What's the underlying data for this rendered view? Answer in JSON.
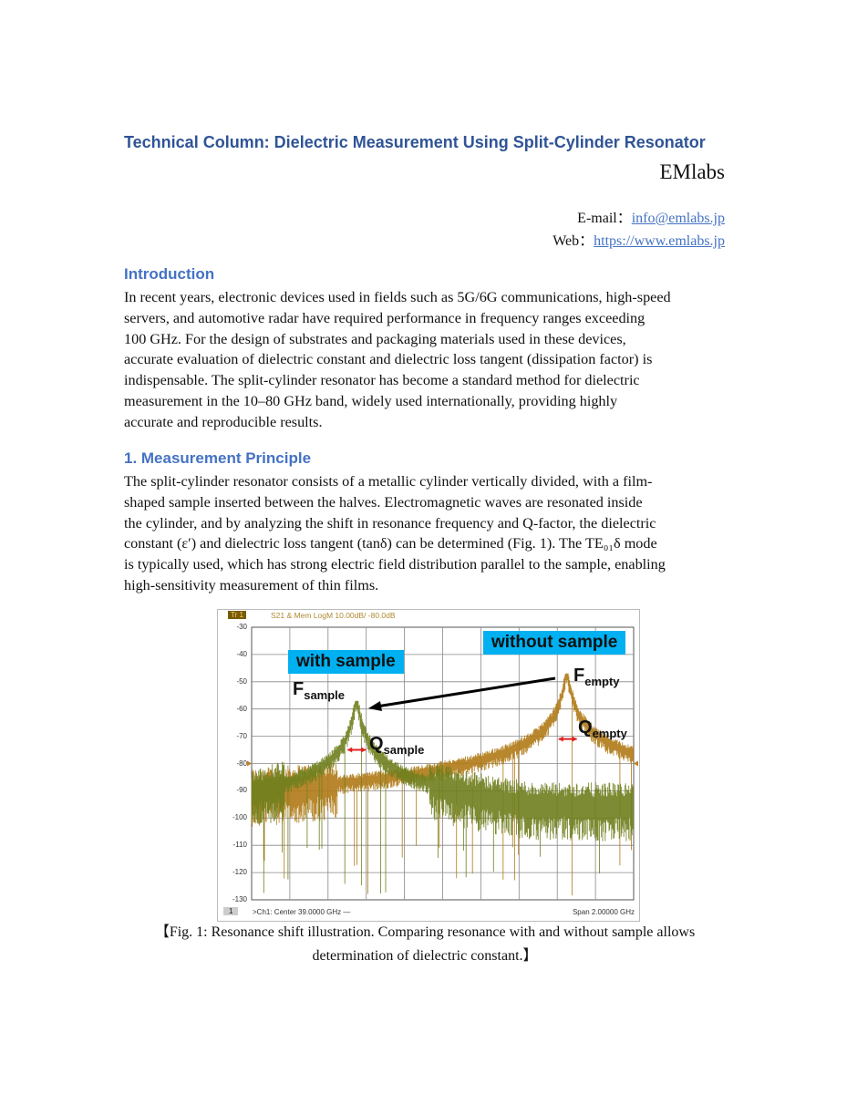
{
  "header": {
    "title": "Technical Column: Dielectric Measurement Using Split-Cylinder Resonator",
    "org": "EMlabs",
    "email_label": "E-mail：",
    "email": "info@emlabs.jp",
    "web_label": "Web：",
    "web": "https://www.emlabs.jp"
  },
  "intro": {
    "heading": "Introduction",
    "lines": [
      "In recent years, electronic devices used in fields such as 5G/6G communications, high-speed",
      "servers, and automotive radar have required performance in frequency ranges exceeding",
      "100 GHz. For the design of substrates and packaging materials used in these devices,",
      "accurate evaluation of dielectric constant and dielectric loss tangent (dissipation factor) is",
      "indispensable. The split-cylinder resonator has become a standard method for dielectric",
      "measurement in the 10–80 GHz band, widely used internationally, providing highly",
      "accurate and reproducible results."
    ]
  },
  "principle": {
    "heading": "1. Measurement Principle",
    "lines": [
      "The split-cylinder resonator consists of a metallic cylinder vertically divided, with a film-",
      "shaped sample inserted between the halves. Electromagnetic waves are resonated inside",
      "the cylinder, and by analyzing the shift in resonance frequency and Q-factor, the dielectric",
      "constant (ε′) and dielectric loss tangent (tanδ) can be determined (Fig. 1). The TE₀₁δ mode",
      "is typically used, which has strong electric field distribution parallel to the sample, enabling",
      "high-sensitivity measurement of thin films."
    ]
  },
  "figure": {
    "trace_tag": "Tr 1",
    "trace_label": "S21 & Mem LogM 10.00dB/ -80.0dB",
    "y_ticks": [
      "-30",
      "-40",
      "-50",
      "-60",
      "-70",
      "-80",
      "-90",
      "-100",
      "-110",
      "-120",
      "-130"
    ],
    "channel": "1",
    "center": ">Ch1:  Center  39.0000 GHz —",
    "span": "Span  2.00000 GHz",
    "with_sample": "with sample",
    "without_sample": "without sample",
    "f_sample": "F",
    "f_sample_sub": "sample",
    "f_empty": "F",
    "f_empty_sub": "empty",
    "q_sample": "Q",
    "q_sample_sub": "sample",
    "q_empty": "Q",
    "q_empty_sub": "empty",
    "colors": {
      "with_sample_trace": "#6f7f1e",
      "without_sample_trace": "#b07a16",
      "label_bg": "#00b0f0",
      "marker": "#e02020"
    },
    "chart_data": {
      "type": "line",
      "xlim": [
        38,
        40
      ],
      "ylim": [
        -130,
        -30
      ],
      "x_unit": "GHz",
      "y_unit": "dB",
      "series": [
        {
          "peak_x": 38.55,
          "peak_y": -57,
          "noise_floor": -95
        },
        {
          "peak_x": 39.65,
          "peak_y": -47,
          "noise_floor": -95
        }
      ]
    }
  },
  "caption": {
    "line1": "【Fig. 1: Resonance shift illustration. Comparing resonance with and without sample allows",
    "line2": "determination of dielectric constant.】"
  }
}
